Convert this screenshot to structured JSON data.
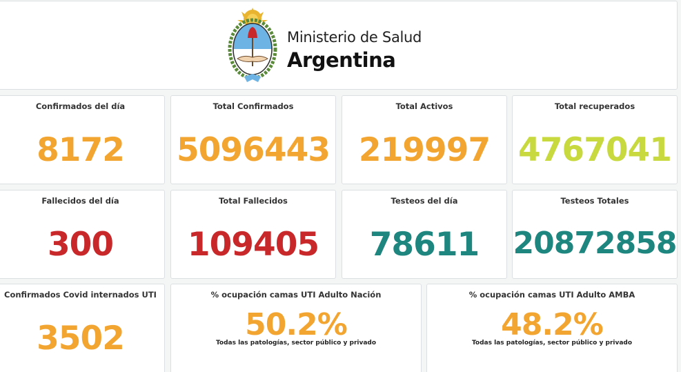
{
  "header": {
    "org_name": "Ministerio de Salud",
    "country": "Argentina"
  },
  "colors": {
    "orange": "#f3a531",
    "green": "#c7d93f",
    "red": "#c8282a",
    "teal": "#1e857f"
  },
  "stats": {
    "confirmados_dia": {
      "label": "Confirmados del día",
      "value": "8172"
    },
    "total_confirmados": {
      "label": "Total Confirmados",
      "value": "5096443"
    },
    "total_activos": {
      "label": "Total Activos",
      "value": "219997"
    },
    "total_recuperados": {
      "label": "Total recuperados",
      "value": "4767041"
    },
    "fallecidos_dia": {
      "label": "Fallecidos del día",
      "value": "300"
    },
    "total_fallecidos": {
      "label": "Total Fallecidos",
      "value": "109405"
    },
    "testeos_dia": {
      "label": "Testeos del día",
      "value": "78611"
    },
    "testeos_totales": {
      "label": "Testeos Totales",
      "value": "20872858"
    },
    "internados_uti": {
      "label": "Confirmados Covid internados UTI",
      "value": "3502"
    },
    "ocupacion_nacion": {
      "label": "% ocupación camas UTI Adulto Nación",
      "value": "50.2%",
      "note": "Todas las patologías, sector público y privado"
    },
    "ocupacion_amba": {
      "label": "% ocupación camas UTI Adulto AMBA",
      "value": "48.2%",
      "note": "Todas las patologías, sector público y privado"
    }
  }
}
